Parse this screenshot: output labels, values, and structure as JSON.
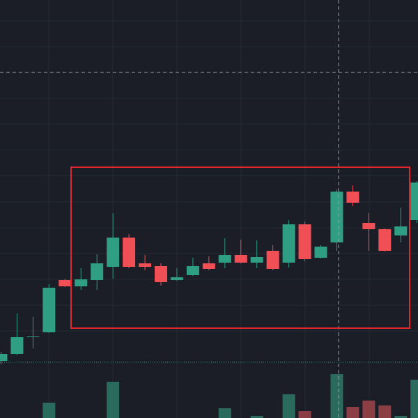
{
  "chart_data": {
    "type": "candlestick",
    "open": [
      82,
      92,
      116,
      123,
      198,
      189,
      198,
      217,
      259,
      222,
      218,
      198,
      205,
      222,
      223,
      234,
      223,
      240,
      223,
      278,
      230,
      252,
      325,
      280,
      271,
      262,
      284
    ],
    "high": [
      95,
      150,
      145,
      192,
      200,
      215,
      235,
      294,
      264,
      234,
      222,
      215,
      230,
      232,
      258,
      256,
      255,
      248,
      284,
      282,
      248,
      328,
      334,
      294,
      272,
      302,
      340
    ],
    "low": [
      77,
      90,
      100,
      122,
      188,
      184,
      184,
      200,
      215,
      212,
      190,
      197,
      204,
      212,
      215,
      222,
      215,
      212,
      216,
      225,
      229,
      240,
      304,
      240,
      239,
      252,
      280
    ],
    "close": [
      92,
      116,
      117,
      187,
      189,
      199,
      222,
      259,
      217,
      217,
      195,
      202,
      218,
      214,
      234,
      223,
      231,
      214,
      278,
      228,
      246,
      325,
      309,
      271,
      240,
      275,
      338
    ],
    "volume": [
      null,
      null,
      null,
      22,
      null,
      null,
      null,
      52,
      null,
      null,
      null,
      null,
      null,
      null,
      14,
      null,
      3,
      null,
      34,
      10,
      null,
      63,
      16,
      25,
      18,
      3,
      55
    ],
    "up_color": "#2f9e83",
    "down_color": "#ef4f55",
    "volume_up_color": "#2a6b5d",
    "volume_down_color": "#8c3e45",
    "ylim": [
      0,
      600
    ]
  }
}
